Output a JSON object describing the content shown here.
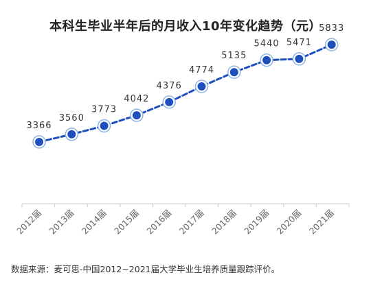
{
  "chart_data": {
    "type": "line",
    "title": "本科生毕业半年后的月收入10年变化趋势（元）",
    "categories": [
      "2012届",
      "2013届",
      "2014届",
      "2015届",
      "2016届",
      "2017届",
      "2018届",
      "2019届",
      "2020届",
      "2021届"
    ],
    "values": [
      3366,
      3560,
      3773,
      4042,
      4376,
      4774,
      5135,
      5440,
      5471,
      5833
    ],
    "xlabel": "",
    "ylabel": "",
    "ylim": [
      1800,
      6200
    ],
    "grid": false,
    "legend": "none",
    "line_style": "dashed",
    "colors": {
      "line": "#1f4fbf",
      "marker": "#1f4fbf",
      "halo": "#8fb6e6",
      "axis": "#cccccc"
    },
    "source": "数据来源：麦可思-中国2012~2021届大学毕业生培养质量跟踪评价。"
  }
}
